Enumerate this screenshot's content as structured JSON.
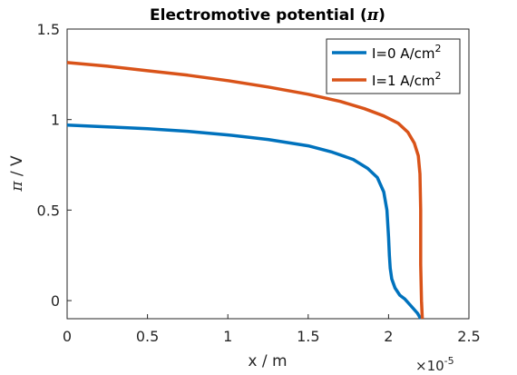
{
  "chart_data": {
    "type": "line",
    "title_text": "Electromotive potential (",
    "title_symbol": "π",
    "title_close": ")",
    "xlabel": "x / m",
    "ylabel_symbol": "π",
    "ylabel_unit": " / V",
    "xlim": [
      0,
      2.5e-05
    ],
    "ylim": [
      -0.1,
      1.5
    ],
    "x_exponent_base": "×10",
    "x_exponent_power": "-5",
    "x_ticks": [
      0,
      5e-06,
      1e-05,
      1.5e-05,
      2e-05,
      2.5e-05
    ],
    "x_tick_labels": [
      "0",
      "0.5",
      "1",
      "1.5",
      "2",
      "2.5"
    ],
    "y_ticks": [
      0,
      0.5,
      1,
      1.5
    ],
    "y_tick_labels": [
      "0",
      "0.5",
      "1",
      "1.5"
    ],
    "grid": false,
    "legend_position": "top-right",
    "series": [
      {
        "name_main": "I=0 A/cm",
        "name_sup": "2",
        "color": "#0072bd",
        "x": [
          0,
          2.5e-06,
          5e-06,
          7.5e-06,
          1e-05,
          1.25e-05,
          1.5e-05,
          1.65e-05,
          1.78e-05,
          1.87e-05,
          1.93e-05,
          1.97e-05,
          1.99e-05,
          2e-05,
          2.005e-05,
          2.01e-05,
          2.02e-05,
          2.04e-05,
          2.07e-05,
          2.1e-05,
          2.14e-05,
          2.18e-05,
          2.2e-05
        ],
        "y": [
          0.97,
          0.96,
          0.95,
          0.935,
          0.915,
          0.89,
          0.855,
          0.82,
          0.78,
          0.73,
          0.68,
          0.6,
          0.5,
          0.35,
          0.25,
          0.18,
          0.12,
          0.07,
          0.03,
          0.01,
          -0.03,
          -0.07,
          -0.1
        ]
      },
      {
        "name_main": "I=1 A/cm",
        "name_sup": "2",
        "color": "#d95319",
        "x": [
          0,
          2.5e-06,
          5e-06,
          7.5e-06,
          1e-05,
          1.25e-05,
          1.5e-05,
          1.7e-05,
          1.85e-05,
          1.97e-05,
          2.06e-05,
          2.12e-05,
          2.16e-05,
          2.185e-05,
          2.195e-05,
          2.2e-05,
          2.2e-05,
          2.205e-05,
          2.21e-05
        ],
        "y": [
          1.315,
          1.295,
          1.27,
          1.245,
          1.215,
          1.18,
          1.14,
          1.1,
          1.06,
          1.02,
          0.98,
          0.93,
          0.87,
          0.8,
          0.7,
          0.5,
          0.2,
          0.0,
          -0.1
        ]
      }
    ]
  }
}
